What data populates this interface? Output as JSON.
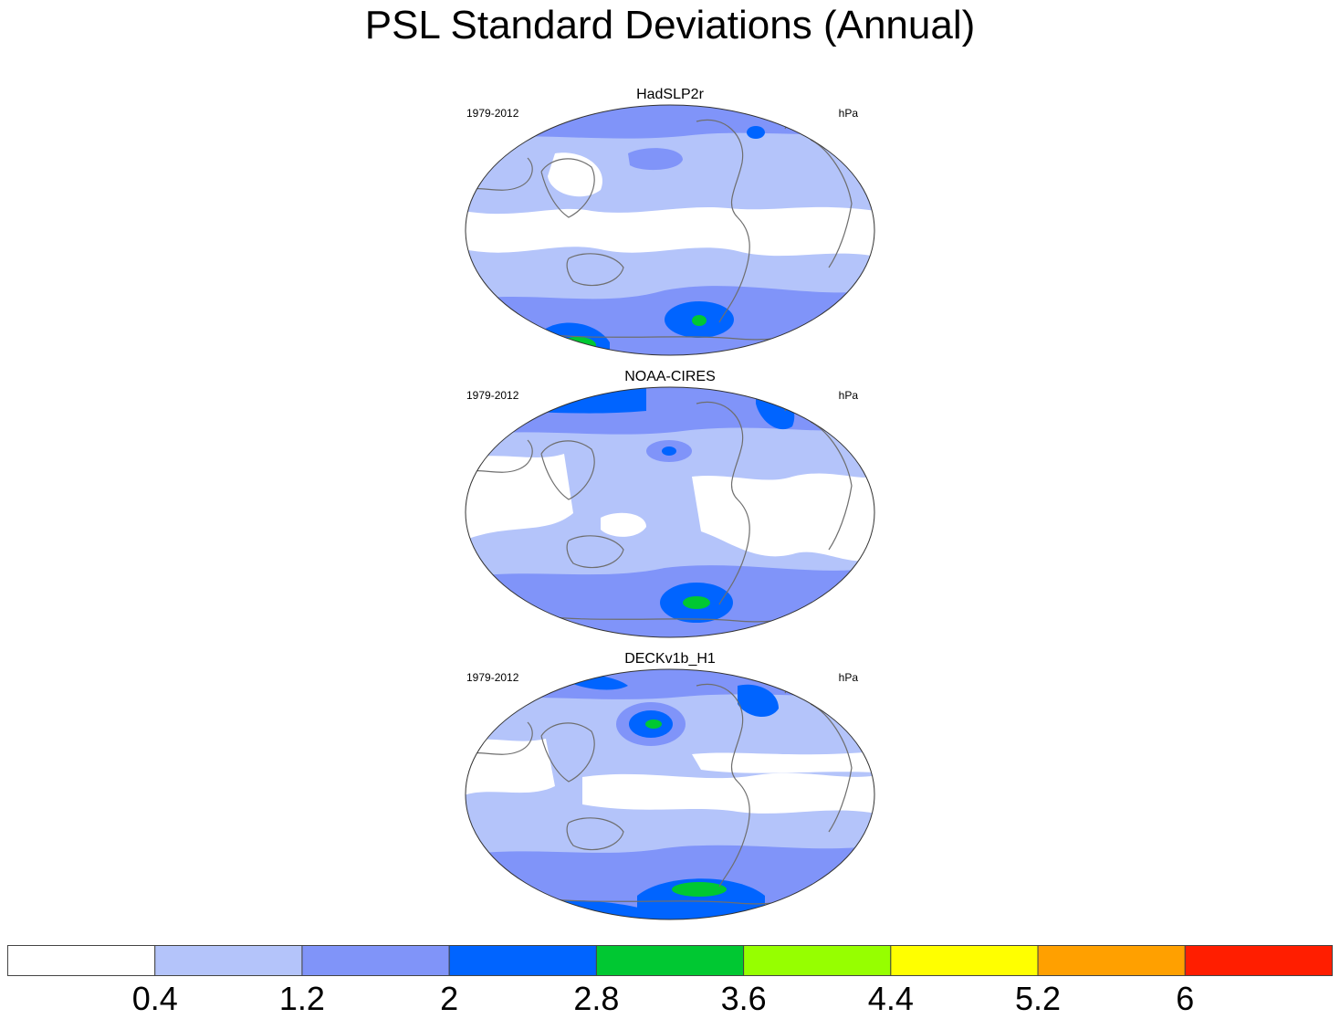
{
  "title": "PSL Standard Deviations (Annual)",
  "panels": [
    {
      "title": "HadSLP2r",
      "period": "1979-2012",
      "units": "hPa"
    },
    {
      "title": "NOAA-CIRES",
      "period": "1979-2012",
      "units": "hPa"
    },
    {
      "title": "DECKv1b_H1",
      "period": "1979-2012",
      "units": "hPa"
    }
  ],
  "colorbar": {
    "colors": [
      "#ffffff",
      "#b4c4fa",
      "#8094f9",
      "#0064ff",
      "#00c832",
      "#96ff00",
      "#ffff00",
      "#ffa000",
      "#ff1e00"
    ],
    "labels": [
      "0.4",
      "1.2",
      "2",
      "2.8",
      "3.6",
      "4.4",
      "5.2",
      "6"
    ]
  }
}
